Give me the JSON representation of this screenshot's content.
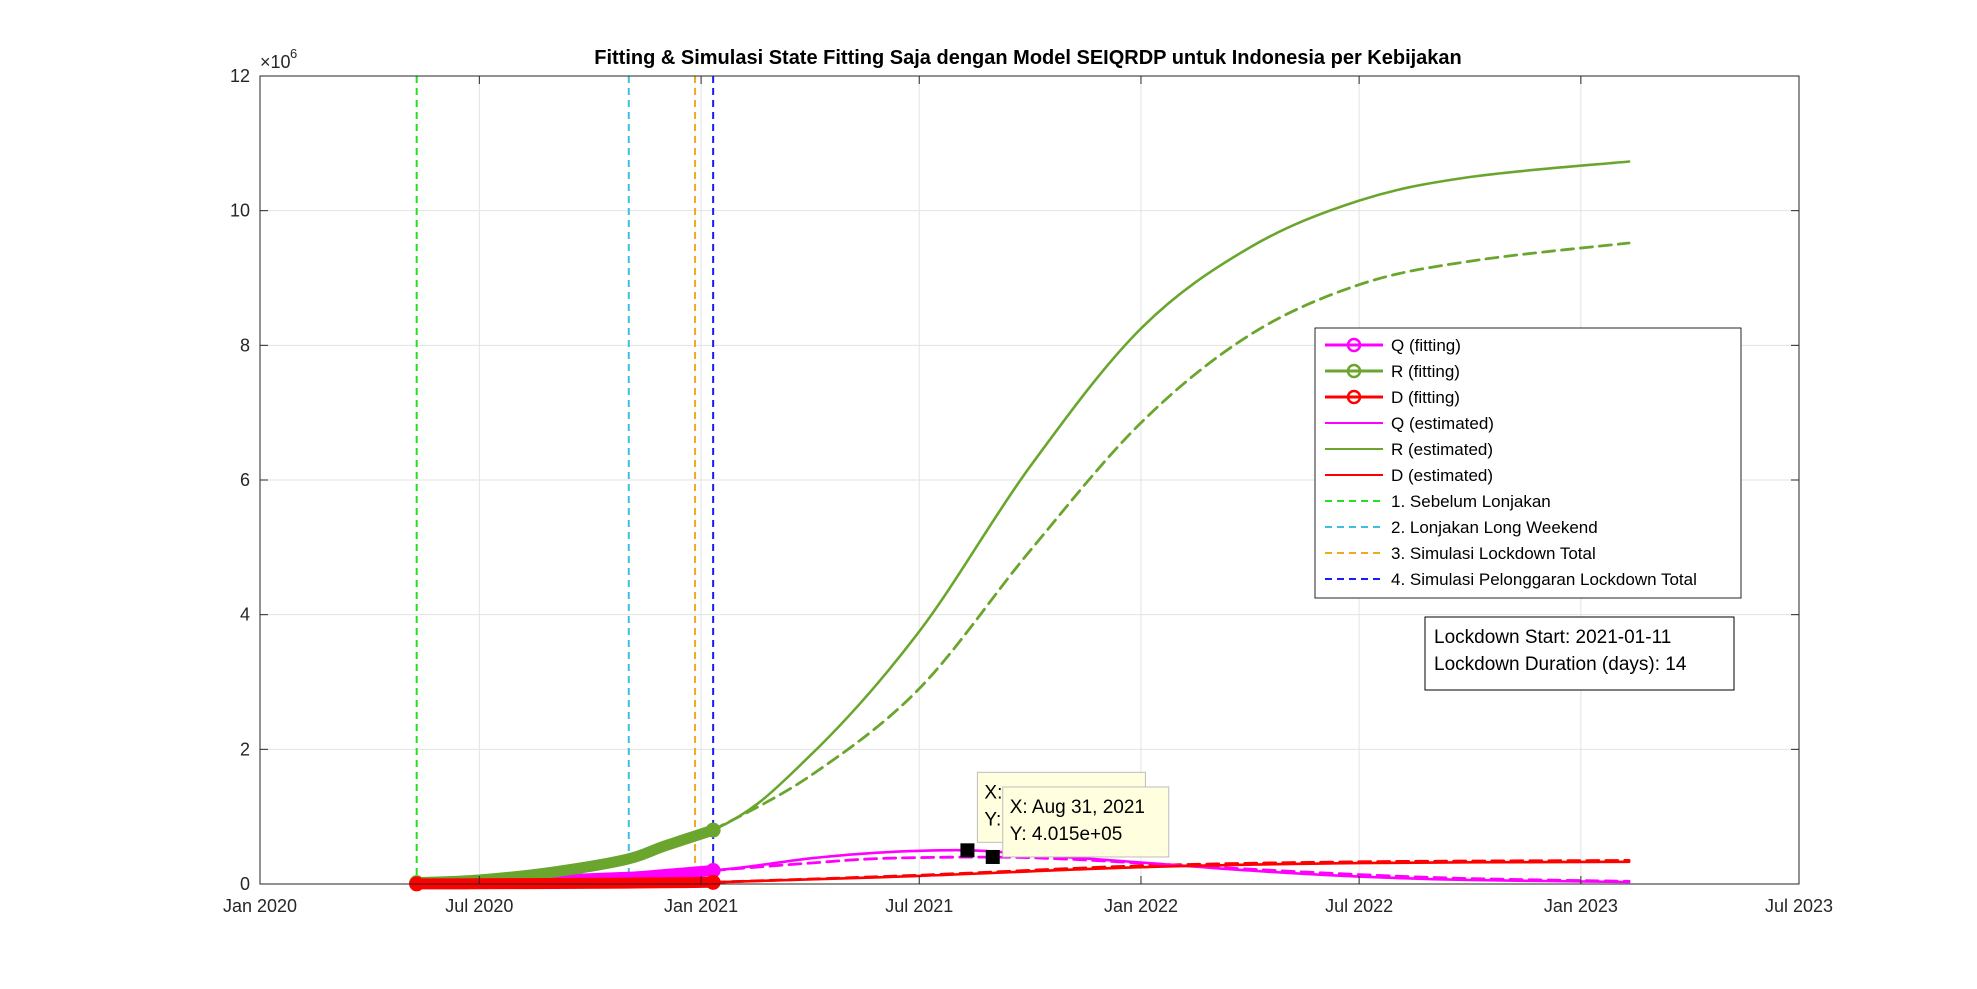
{
  "chart_data": {
    "type": "line",
    "title": "Fitting & Simulasi State Fitting Saja dengan Model SEIQRDP untuk Indonesia per Kebijakan",
    "xlabel": "",
    "ylabel": "",
    "y_multiplier_base": "×10",
    "y_multiplier_exp": "6",
    "x_range": [
      "2020-01-01",
      "2023-07-01"
    ],
    "y_range": [
      0,
      12
    ],
    "grid": true,
    "legend_placement": "right",
    "x_ticks": [
      {
        "date": "2020-01-01",
        "label": "Jan 2020"
      },
      {
        "date": "2020-07-01",
        "label": "Jul 2020"
      },
      {
        "date": "2021-01-01",
        "label": "Jan 2021"
      },
      {
        "date": "2021-07-01",
        "label": "Jul 2021"
      },
      {
        "date": "2022-01-01",
        "label": "Jan 2022"
      },
      {
        "date": "2022-07-01",
        "label": "Jul 2022"
      },
      {
        "date": "2023-01-01",
        "label": "Jan 2023"
      },
      {
        "date": "2023-07-01",
        "label": "Jul 2023"
      }
    ],
    "y_ticks": [
      0,
      2,
      4,
      6,
      8,
      10,
      12
    ],
    "vertical_lines": [
      {
        "name": "1. Sebelum Lonjakan",
        "date": "2020-05-10",
        "color": "#22e022"
      },
      {
        "name": "2. Lonjakan Long Weekend",
        "date": "2020-11-02",
        "color": "#3fbfe0"
      },
      {
        "name": "3. Simulasi Lockdown Total",
        "date": "2020-12-27",
        "color": "#f0a81e"
      },
      {
        "name": "4. Simulasi Pelonggaran Lockdown Total",
        "date": "2021-01-11",
        "color": "#1a1aff"
      }
    ],
    "series": [
      {
        "name": "Q (fitting)",
        "style": "fitting",
        "color": "#ff00ff",
        "points": [
          [
            "2020-05-10",
            0.01
          ],
          [
            "2020-07-01",
            0.03
          ],
          [
            "2020-09-01",
            0.06
          ],
          [
            "2020-11-01",
            0.1
          ],
          [
            "2020-12-01",
            0.14
          ],
          [
            "2021-01-11",
            0.2
          ]
        ]
      },
      {
        "name": "R (fitting)",
        "style": "fitting",
        "color": "#6aa62e",
        "points": [
          [
            "2020-05-10",
            0.02
          ],
          [
            "2020-07-01",
            0.06
          ],
          [
            "2020-09-01",
            0.18
          ],
          [
            "2020-11-01",
            0.37
          ],
          [
            "2020-12-01",
            0.56
          ],
          [
            "2021-01-11",
            0.8
          ]
        ]
      },
      {
        "name": "D (fitting)",
        "style": "fitting",
        "color": "#ff0000",
        "points": [
          [
            "2020-05-10",
            0.001
          ],
          [
            "2020-07-01",
            0.003
          ],
          [
            "2020-09-01",
            0.007
          ],
          [
            "2020-11-01",
            0.013
          ],
          [
            "2020-12-01",
            0.018
          ],
          [
            "2021-01-11",
            0.025
          ]
        ]
      },
      {
        "name": "Q (estimated)",
        "style": "solid",
        "color": "#ff00ff",
        "points": [
          [
            "2020-05-10",
            0.01
          ],
          [
            "2020-09-01",
            0.06
          ],
          [
            "2021-01-11",
            0.2
          ],
          [
            "2021-04-01",
            0.38
          ],
          [
            "2021-06-01",
            0.47
          ],
          [
            "2021-08-10",
            0.5
          ],
          [
            "2021-10-01",
            0.44
          ],
          [
            "2022-01-01",
            0.32
          ],
          [
            "2022-04-01",
            0.2
          ],
          [
            "2022-07-01",
            0.11
          ],
          [
            "2022-10-01",
            0.06
          ],
          [
            "2023-02-10",
            0.03
          ]
        ]
      },
      {
        "name": "R (estimated)",
        "style": "solid",
        "color": "#6aa62e",
        "points": [
          [
            "2020-05-10",
            0.02
          ],
          [
            "2020-09-01",
            0.18
          ],
          [
            "2021-01-11",
            0.8
          ],
          [
            "2021-04-01",
            1.9
          ],
          [
            "2021-07-01",
            3.75
          ],
          [
            "2021-10-01",
            6.2
          ],
          [
            "2022-01-01",
            8.25
          ],
          [
            "2022-04-01",
            9.45
          ],
          [
            "2022-07-01",
            10.15
          ],
          [
            "2022-10-01",
            10.5
          ],
          [
            "2023-02-10",
            10.73
          ]
        ]
      },
      {
        "name": "D (estimated)",
        "style": "solid",
        "color": "#ff0000",
        "points": [
          [
            "2020-05-10",
            0.001
          ],
          [
            "2020-09-01",
            0.007
          ],
          [
            "2021-01-11",
            0.025
          ],
          [
            "2021-07-01",
            0.12
          ],
          [
            "2022-01-01",
            0.25
          ],
          [
            "2022-07-01",
            0.31
          ],
          [
            "2023-02-10",
            0.33
          ]
        ]
      },
      {
        "name": "",
        "style": "dashed",
        "color": "#ff00ff",
        "points": [
          [
            "2021-01-11",
            0.2
          ],
          [
            "2021-04-01",
            0.31
          ],
          [
            "2021-06-01",
            0.38
          ],
          [
            "2021-08-31",
            0.4
          ],
          [
            "2021-11-01",
            0.37
          ],
          [
            "2022-01-01",
            0.31
          ],
          [
            "2022-04-01",
            0.22
          ],
          [
            "2022-07-01",
            0.14
          ],
          [
            "2022-10-01",
            0.08
          ],
          [
            "2023-02-10",
            0.04
          ]
        ]
      },
      {
        "name": "",
        "style": "dashed",
        "color": "#6aa62e",
        "points": [
          [
            "2021-01-11",
            0.8
          ],
          [
            "2021-04-01",
            1.6
          ],
          [
            "2021-07-01",
            2.9
          ],
          [
            "2021-10-01",
            4.95
          ],
          [
            "2022-01-01",
            6.85
          ],
          [
            "2022-04-01",
            8.15
          ],
          [
            "2022-07-01",
            8.9
          ],
          [
            "2022-10-01",
            9.25
          ],
          [
            "2023-02-10",
            9.52
          ]
        ]
      },
      {
        "name": "",
        "style": "dashed",
        "color": "#ff0000",
        "points": [
          [
            "2021-01-11",
            0.025
          ],
          [
            "2021-07-01",
            0.13
          ],
          [
            "2022-01-01",
            0.27
          ],
          [
            "2022-07-01",
            0.33
          ],
          [
            "2023-02-10",
            0.35
          ]
        ]
      }
    ],
    "datatips": [
      {
        "date": "2021-08-10",
        "y": 0.5,
        "line1": "X:",
        "line2": "Y:",
        "truncated": true
      },
      {
        "date": "2021-08-31",
        "y": 0.4015,
        "line1": "X: Aug 31, 2021",
        "line2": "Y: 4.015e+05",
        "truncated": false
      }
    ],
    "annotation": {
      "line1": "Lockdown Start: 2021-01-11",
      "line2": "Lockdown Duration (days): 14"
    }
  }
}
